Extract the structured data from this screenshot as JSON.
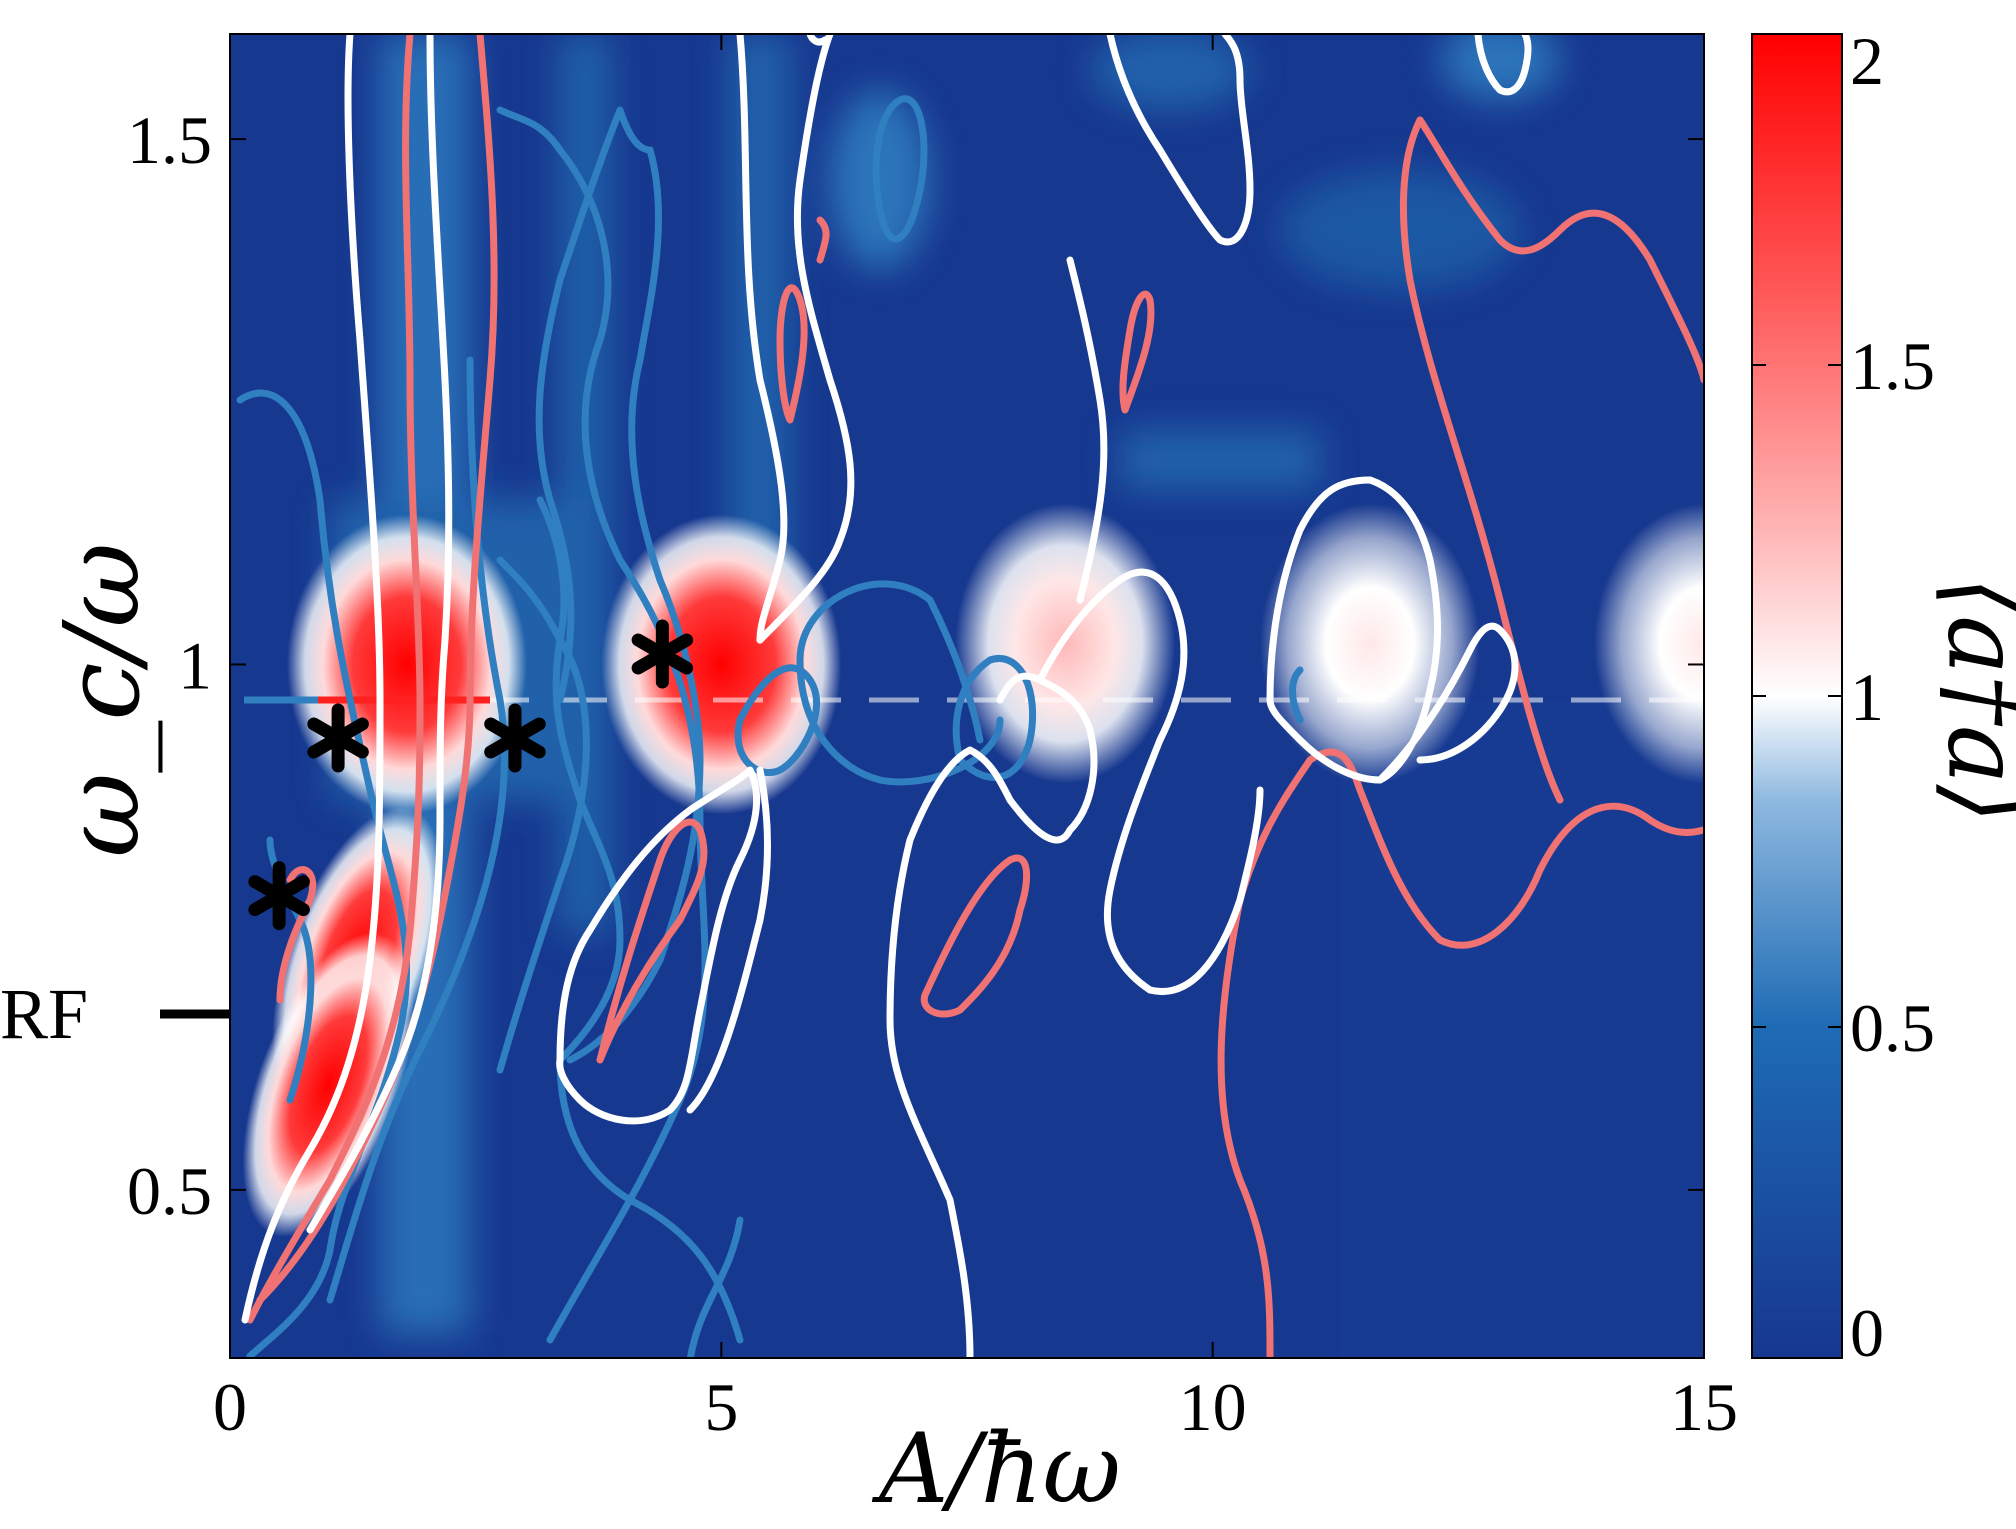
{
  "chart_data": {
    "type": "heatmap",
    "title": "",
    "xlabel": "A/ħω",
    "ylabel": "ω_c/ω",
    "xlim": [
      0,
      15
    ],
    "ylim": [
      0.34,
      1.6
    ],
    "x_ticks": [
      0,
      5,
      10,
      15
    ],
    "x_tick_labels": [
      "0",
      "5",
      "10",
      "15"
    ],
    "y_ticks": [
      0.5,
      1,
      1.5
    ],
    "y_tick_labels": [
      "0.5",
      "1",
      "1.5"
    ],
    "colorbar": {
      "label": "⟨a†a⟩",
      "range": [
        0,
        2
      ],
      "ticks": [
        0,
        0.5,
        1,
        1.5,
        2
      ],
      "tick_labels": [
        "0",
        "0.5",
        "1",
        "1.5",
        "2"
      ],
      "colors": {
        "low": "#17378f",
        "mid_low": "#1e6bb4",
        "mid": "#ffffff",
        "high": "#ff0000"
      }
    },
    "hotspots": [
      {
        "x": 1.3,
        "y": 0.72,
        "value": 2.0
      },
      {
        "x": 1.0,
        "y": 0.6,
        "value": 2.0
      },
      {
        "x": 1.8,
        "y": 1.0,
        "value": 1.9
      },
      {
        "x": 5.0,
        "y": 1.0,
        "value": 2.0
      },
      {
        "x": 8.5,
        "y": 1.02,
        "value": 1.2
      },
      {
        "x": 11.6,
        "y": 1.02,
        "value": 1.05
      },
      {
        "x": 15.0,
        "y": 1.02,
        "value": 0.95
      }
    ],
    "contour_colors": {
      "blue": "#2f7fc1",
      "white": "#ffffff",
      "pink": "#f07272"
    },
    "annotations": [
      {
        "type": "marker",
        "symbol": "*",
        "x": 0.5,
        "y": 0.78
      },
      {
        "type": "marker",
        "symbol": "*",
        "x": 1.1,
        "y": 0.93
      },
      {
        "type": "marker",
        "symbol": "*",
        "x": 2.9,
        "y": 0.93
      },
      {
        "type": "marker",
        "symbol": "*",
        "x": 4.4,
        "y": 1.01
      },
      {
        "type": "label",
        "text": "RF",
        "y": 0.78
      }
    ],
    "grid": false
  }
}
